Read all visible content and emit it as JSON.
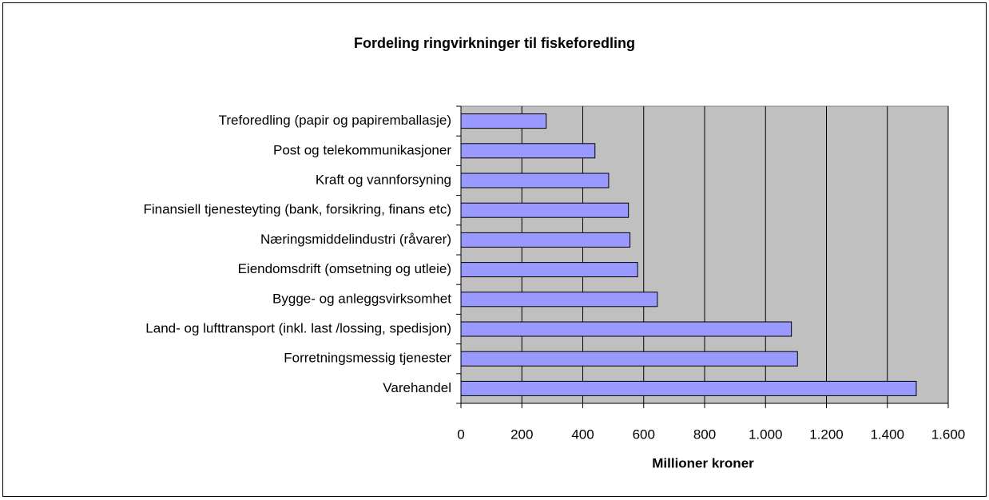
{
  "chart_data": {
    "type": "bar",
    "orientation": "horizontal",
    "title": "Fordeling ringvirkninger til fiskeforedling",
    "x_label": "Millioner kroner",
    "categories": [
      "Treforedling (papir og papiremballasje)",
      "Post og telekommunikasjoner",
      "Kraft og vannforsyning",
      "Finansiell tjenesteyting (bank, forsikring, finans etc)",
      "Næringsmiddelindustri (råvarer)",
      "Eiendomsdrift (omsetning og utleie)",
      "Bygge- og anleggsvirksomhet",
      "Land- og lufttransport (inkl. last /lossing, spedisjon)",
      "Forretningsmessig tjenester ",
      "Varehandel "
    ],
    "values": [
      280,
      440,
      485,
      550,
      555,
      580,
      645,
      1085,
      1105,
      1495
    ],
    "color": "#9999ff",
    "xlim": [
      0,
      1600
    ],
    "xticks": [
      0,
      200,
      400,
      600,
      800,
      {
        "value": 1000,
        "label": "1.000"
      },
      {
        "value": 1200,
        "label": "1.200"
      },
      {
        "value": 1400,
        "label": "1.400"
      },
      {
        "value": 1600,
        "label": "1.600"
      }
    ],
    "grid": true
  }
}
